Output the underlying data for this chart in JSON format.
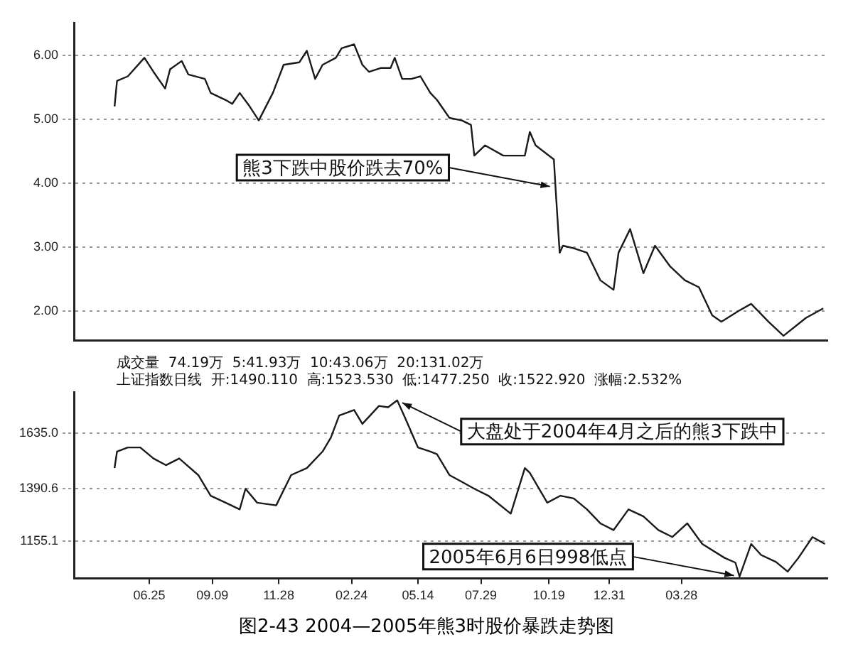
{
  "chart_data": [
    {
      "type": "line",
      "xlim": [
        "2003-03-26",
        "2005-09-20"
      ],
      "ylim": [
        1.54,
        6.5
      ],
      "xticks": [
        {
          "value": "2003-06-25",
          "label": null
        },
        {
          "value": "2003-09-09",
          "label": null
        },
        {
          "value": "2003-11-28",
          "label": null
        },
        {
          "value": "2004-02-24",
          "label": null
        },
        {
          "value": "2004-05-14",
          "label": null
        },
        {
          "value": "2004-07-29",
          "label": null
        },
        {
          "value": "2004-10-19",
          "label": null
        },
        {
          "value": "2004-12-31",
          "label": null
        },
        {
          "value": "2005-03-28",
          "label": null
        }
      ],
      "yticks": [
        {
          "value": 2,
          "label": "2.00"
        },
        {
          "value": 3,
          "label": "3.00"
        },
        {
          "value": 4,
          "label": "4.00"
        },
        {
          "value": 5,
          "label": "5.00"
        },
        {
          "value": 6,
          "label": "6.00"
        }
      ],
      "grid": "y",
      "tick_labels": "y",
      "x": [
        "2003-05-14",
        "2003-05-17",
        "2003-05-30",
        "2003-06-19",
        "2003-06-30",
        "2003-07-14",
        "2003-07-20",
        "2003-08-03",
        "2003-08-11",
        "2003-08-31",
        "2003-09-07",
        "2003-09-25",
        "2003-10-03",
        "2003-10-12",
        "2003-10-24",
        "2003-11-04",
        "2003-11-21",
        "2003-12-04",
        "2003-12-23",
        "2004-01-01",
        "2004-01-11",
        "2004-01-20",
        "2004-02-05",
        "2004-02-12",
        "2004-02-27",
        "2004-03-08",
        "2004-03-16",
        "2004-03-30",
        "2004-04-11",
        "2004-04-16",
        "2004-04-25",
        "2004-05-06",
        "2004-05-17",
        "2004-05-29",
        "2004-06-06",
        "2004-06-21",
        "2004-07-06",
        "2004-07-17",
        "2004-07-21",
        "2004-08-03",
        "2004-08-25",
        "2004-09-20",
        "2004-09-26",
        "2004-10-03",
        "2004-10-25",
        "2004-10-27",
        "2004-11-01",
        "2004-11-05",
        "2004-11-18",
        "2004-12-04",
        "2004-12-20",
        "2005-01-05",
        "2005-01-11",
        "2005-01-25",
        "2005-02-01",
        "2005-02-10",
        "2005-02-24",
        "2005-03-14",
        "2005-04-01",
        "2005-04-18",
        "2005-05-04",
        "2005-05-15",
        "2005-06-05",
        "2005-06-20",
        "2005-07-11",
        "2005-07-29",
        "2005-08-25",
        "2005-09-15"
      ],
      "series": [
        {
          "color": "#1a1a1a",
          "values": [
            5.2,
            5.6,
            5.67,
            5.96,
            5.74,
            5.48,
            5.78,
            5.91,
            5.7,
            5.63,
            5.41,
            5.3,
            5.24,
            5.41,
            5.2,
            4.98,
            5.41,
            5.85,
            5.89,
            6.07,
            5.63,
            5.85,
            5.96,
            6.11,
            6.17,
            5.85,
            5.74,
            5.8,
            5.8,
            5.96,
            5.63,
            5.63,
            5.67,
            5.41,
            5.3,
            5.02,
            4.98,
            4.91,
            4.43,
            4.59,
            4.43,
            4.43,
            4.8,
            4.59,
            4.37,
            3.93,
            2.91,
            3.02,
            2.98,
            2.91,
            2.48,
            2.33,
            2.91,
            3.28,
            2.98,
            2.59,
            3.02,
            2.7,
            2.48,
            2.37,
            1.93,
            1.83,
            2.0,
            2.11,
            1.83,
            1.61,
            1.89,
            2.04
          ]
        }
      ],
      "annotations": [
        {
          "text": "熊3下跌中股价跌去70%",
          "x": "2004-10-27",
          "y": 3.93
        }
      ]
    },
    {
      "type": "line",
      "xlim": [
        "2003-03-26",
        "2005-09-20"
      ],
      "ylim": [
        990,
        1820
      ],
      "xticks": [
        {
          "value": "2003-06-25",
          "label": "06.25"
        },
        {
          "value": "2003-09-09",
          "label": "09.09"
        },
        {
          "value": "2003-11-28",
          "label": "11.28"
        },
        {
          "value": "2004-02-24",
          "label": "02.24"
        },
        {
          "value": "2004-05-14",
          "label": "05.14"
        },
        {
          "value": "2004-07-29",
          "label": "07.29"
        },
        {
          "value": "2004-10-19",
          "label": "10.19"
        },
        {
          "value": "2004-12-31",
          "label": "12.31"
        },
        {
          "value": "2005-03-28",
          "label": "03.28"
        }
      ],
      "yticks": [
        {
          "value": 1155.1,
          "label": "1155.1"
        },
        {
          "value": 1390.6,
          "label": "1390.6"
        },
        {
          "value": 1635,
          "label": "1635.0"
        }
      ],
      "grid": "y",
      "x": [
        "2003-05-14",
        "2003-05-17",
        "2003-05-30",
        "2003-06-14",
        "2003-06-30",
        "2003-07-15",
        "2003-07-31",
        "2003-08-23",
        "2003-09-07",
        "2003-09-25",
        "2003-10-12",
        "2003-10-19",
        "2003-11-02",
        "2003-11-25",
        "2003-12-13",
        "2004-01-01",
        "2004-01-20",
        "2004-01-30",
        "2004-02-09",
        "2004-02-27",
        "2004-03-08",
        "2004-03-28",
        "2004-04-08",
        "2004-04-19",
        "2004-04-28",
        "2004-05-14",
        "2004-05-29",
        "2004-06-06",
        "2004-06-21",
        "2004-07-06",
        "2004-07-21",
        "2004-08-07",
        "2004-09-03",
        "2004-09-20",
        "2004-09-26",
        "2004-10-17",
        "2004-11-02",
        "2004-11-18",
        "2004-12-04",
        "2004-12-20",
        "2005-01-05",
        "2005-01-23",
        "2005-02-10",
        "2005-02-28",
        "2005-03-17",
        "2005-04-04",
        "2005-04-22",
        "2005-05-19",
        "2005-06-01",
        "2005-06-06",
        "2005-06-20",
        "2005-07-02",
        "2005-07-20",
        "2005-08-03",
        "2005-08-16",
        "2005-09-02",
        "2005-09-17"
      ],
      "series": [
        {
          "color": "#1a1a1a",
          "values": [
            1481,
            1555,
            1573,
            1573,
            1524,
            1494,
            1524,
            1450,
            1358,
            1327,
            1297,
            1389,
            1327,
            1315,
            1450,
            1481,
            1555,
            1617,
            1715,
            1740,
            1678,
            1758,
            1752,
            1783,
            1709,
            1573,
            1555,
            1543,
            1450,
            1420,
            1389,
            1358,
            1278,
            1481,
            1460,
            1327,
            1358,
            1346,
            1297,
            1235,
            1205,
            1297,
            1266,
            1205,
            1174,
            1235,
            1143,
            1081,
            1060,
            998,
            1143,
            1094,
            1063,
            1020,
            1081,
            1174,
            1143
          ]
        }
      ],
      "annotations": [
        "成交量  74.19万  5:41.93万  10:43.06万  20:131.02万",
        "上证指数日线  开:1490.110  高:1523.530  低:1477.250  收:1522.920  涨幅:2.532%",
        {
          "text": "大盘处于2004年4月之后的熊3下跌中",
          "x": "2004-04-19",
          "y": 1783
        },
        {
          "text": "2005年6月6日998低点",
          "x": "2005-06-06",
          "y": 998
        },
        "图2-43  2004—2005年熊3时股价暴跌走势图"
      ]
    }
  ]
}
